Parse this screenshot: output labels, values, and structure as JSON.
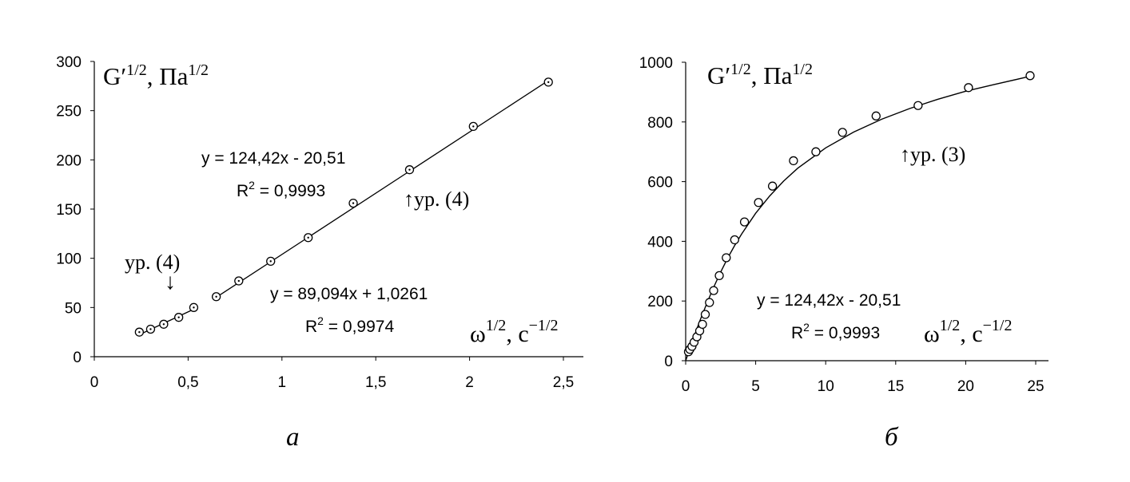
{
  "chart_data": [
    {
      "type": "scatter",
      "panel_label": "а",
      "ylabel": {
        "main": "G",
        "exp": "1/2",
        "sep": ", ",
        "unit": "Па",
        "unit_exp": "1/2"
      },
      "xlabel": {
        "main": "ω",
        "exp": "1/2",
        "sep": ", ",
        "unit": "с",
        "unit_exp": "−1/2"
      },
      "xlim": [
        0,
        2.5
      ],
      "ylim": [
        0,
        300
      ],
      "x_ticks": [
        "0",
        "0,5",
        "1",
        "1,5",
        "2",
        "2,5"
      ],
      "x_tick_values": [
        0,
        0.5,
        1,
        1.5,
        2,
        2.5
      ],
      "y_ticks": [
        "0",
        "50",
        "100",
        "150",
        "200",
        "250",
        "300"
      ],
      "y_tick_values": [
        0,
        50,
        100,
        150,
        200,
        250,
        300
      ],
      "grid": false,
      "series": [
        {
          "marker": "circle-dot",
          "x": [
            0.24,
            0.3,
            0.37,
            0.45,
            0.53,
            0.65,
            0.77,
            0.94,
            1.14,
            1.38,
            1.68,
            2.02,
            2.42
          ],
          "y": [
            25,
            28,
            33,
            40,
            50,
            61,
            77,
            97,
            121,
            156,
            190,
            234,
            279
          ]
        }
      ],
      "fits": [
        {
          "x_range": [
            0.24,
            0.53
          ],
          "slope": 89.094,
          "intercept": 1.0261
        },
        {
          "x_range": [
            0.65,
            2.42
          ],
          "slope": 124.42,
          "intercept": -20.51
        }
      ],
      "annotations": [
        {
          "id": "eq1",
          "text": "y = 124,42x - 20,51"
        },
        {
          "id": "r1",
          "base": "R",
          "exp": "2",
          "rest": " = 0,9993"
        },
        {
          "id": "eq2",
          "text": "y = 89,094x + 1,0261"
        },
        {
          "id": "r2",
          "base": "R",
          "exp": "2",
          "rest": " = 0,9974"
        },
        {
          "id": "urUp",
          "text": "↑ур. (4)"
        },
        {
          "id": "urTop",
          "text": "ур. (4)"
        },
        {
          "id": "downArrow",
          "text": "↓"
        }
      ]
    },
    {
      "type": "scatter",
      "panel_label": "б",
      "ylabel": {
        "main": "G",
        "exp": "1/2",
        "sep": ", ",
        "unit": "Па",
        "unit_exp": "1/2"
      },
      "xlabel": {
        "main": "ω",
        "exp": "1/2",
        "sep": ", ",
        "unit": "с",
        "unit_exp": "−1/2"
      },
      "xlim": [
        0,
        25
      ],
      "ylim": [
        0,
        1000
      ],
      "x_ticks": [
        "0",
        "5",
        "10",
        "15",
        "20",
        "25"
      ],
      "x_tick_values": [
        0,
        5,
        10,
        15,
        20,
        25
      ],
      "y_ticks": [
        "0",
        "200",
        "400",
        "600",
        "800",
        "1000"
      ],
      "y_tick_values": [
        0,
        200,
        400,
        600,
        800,
        1000
      ],
      "grid": false,
      "series": [
        {
          "marker": "circle",
          "x": [
            0.2,
            0.3,
            0.45,
            0.6,
            0.8,
            1.0,
            1.2,
            1.4,
            1.7,
            2.0,
            2.4,
            2.9,
            3.5,
            4.2,
            5.2,
            6.2,
            7.7,
            9.3,
            11.2,
            13.6,
            16.6,
            20.2,
            24.6
          ],
          "y": [
            30,
            38,
            48,
            62,
            80,
            100,
            122,
            155,
            195,
            235,
            285,
            345,
            405,
            465,
            530,
            585,
            670,
            700,
            765,
            820,
            855,
            915,
            955
          ]
        }
      ],
      "model_curve": {
        "x": [
          0,
          0.5,
          1,
          1.5,
          2,
          2.5,
          3,
          3.5,
          4,
          5,
          6,
          7,
          8,
          10,
          12,
          14,
          16,
          18,
          20,
          22,
          24.6
        ],
        "y": [
          0,
          68,
          132,
          191,
          246,
          297,
          344,
          386,
          425,
          494,
          552,
          602,
          645,
          713,
          766,
          809,
          845,
          876,
          903,
          925,
          953
        ]
      },
      "annotations": [
        {
          "id": "eq",
          "text": "y = 124,42x - 20,51"
        },
        {
          "id": "r",
          "base": "R",
          "exp": "2",
          "rest": " = 0,9993"
        },
        {
          "id": "ur",
          "text": "↑ур. (3)"
        }
      ]
    }
  ]
}
